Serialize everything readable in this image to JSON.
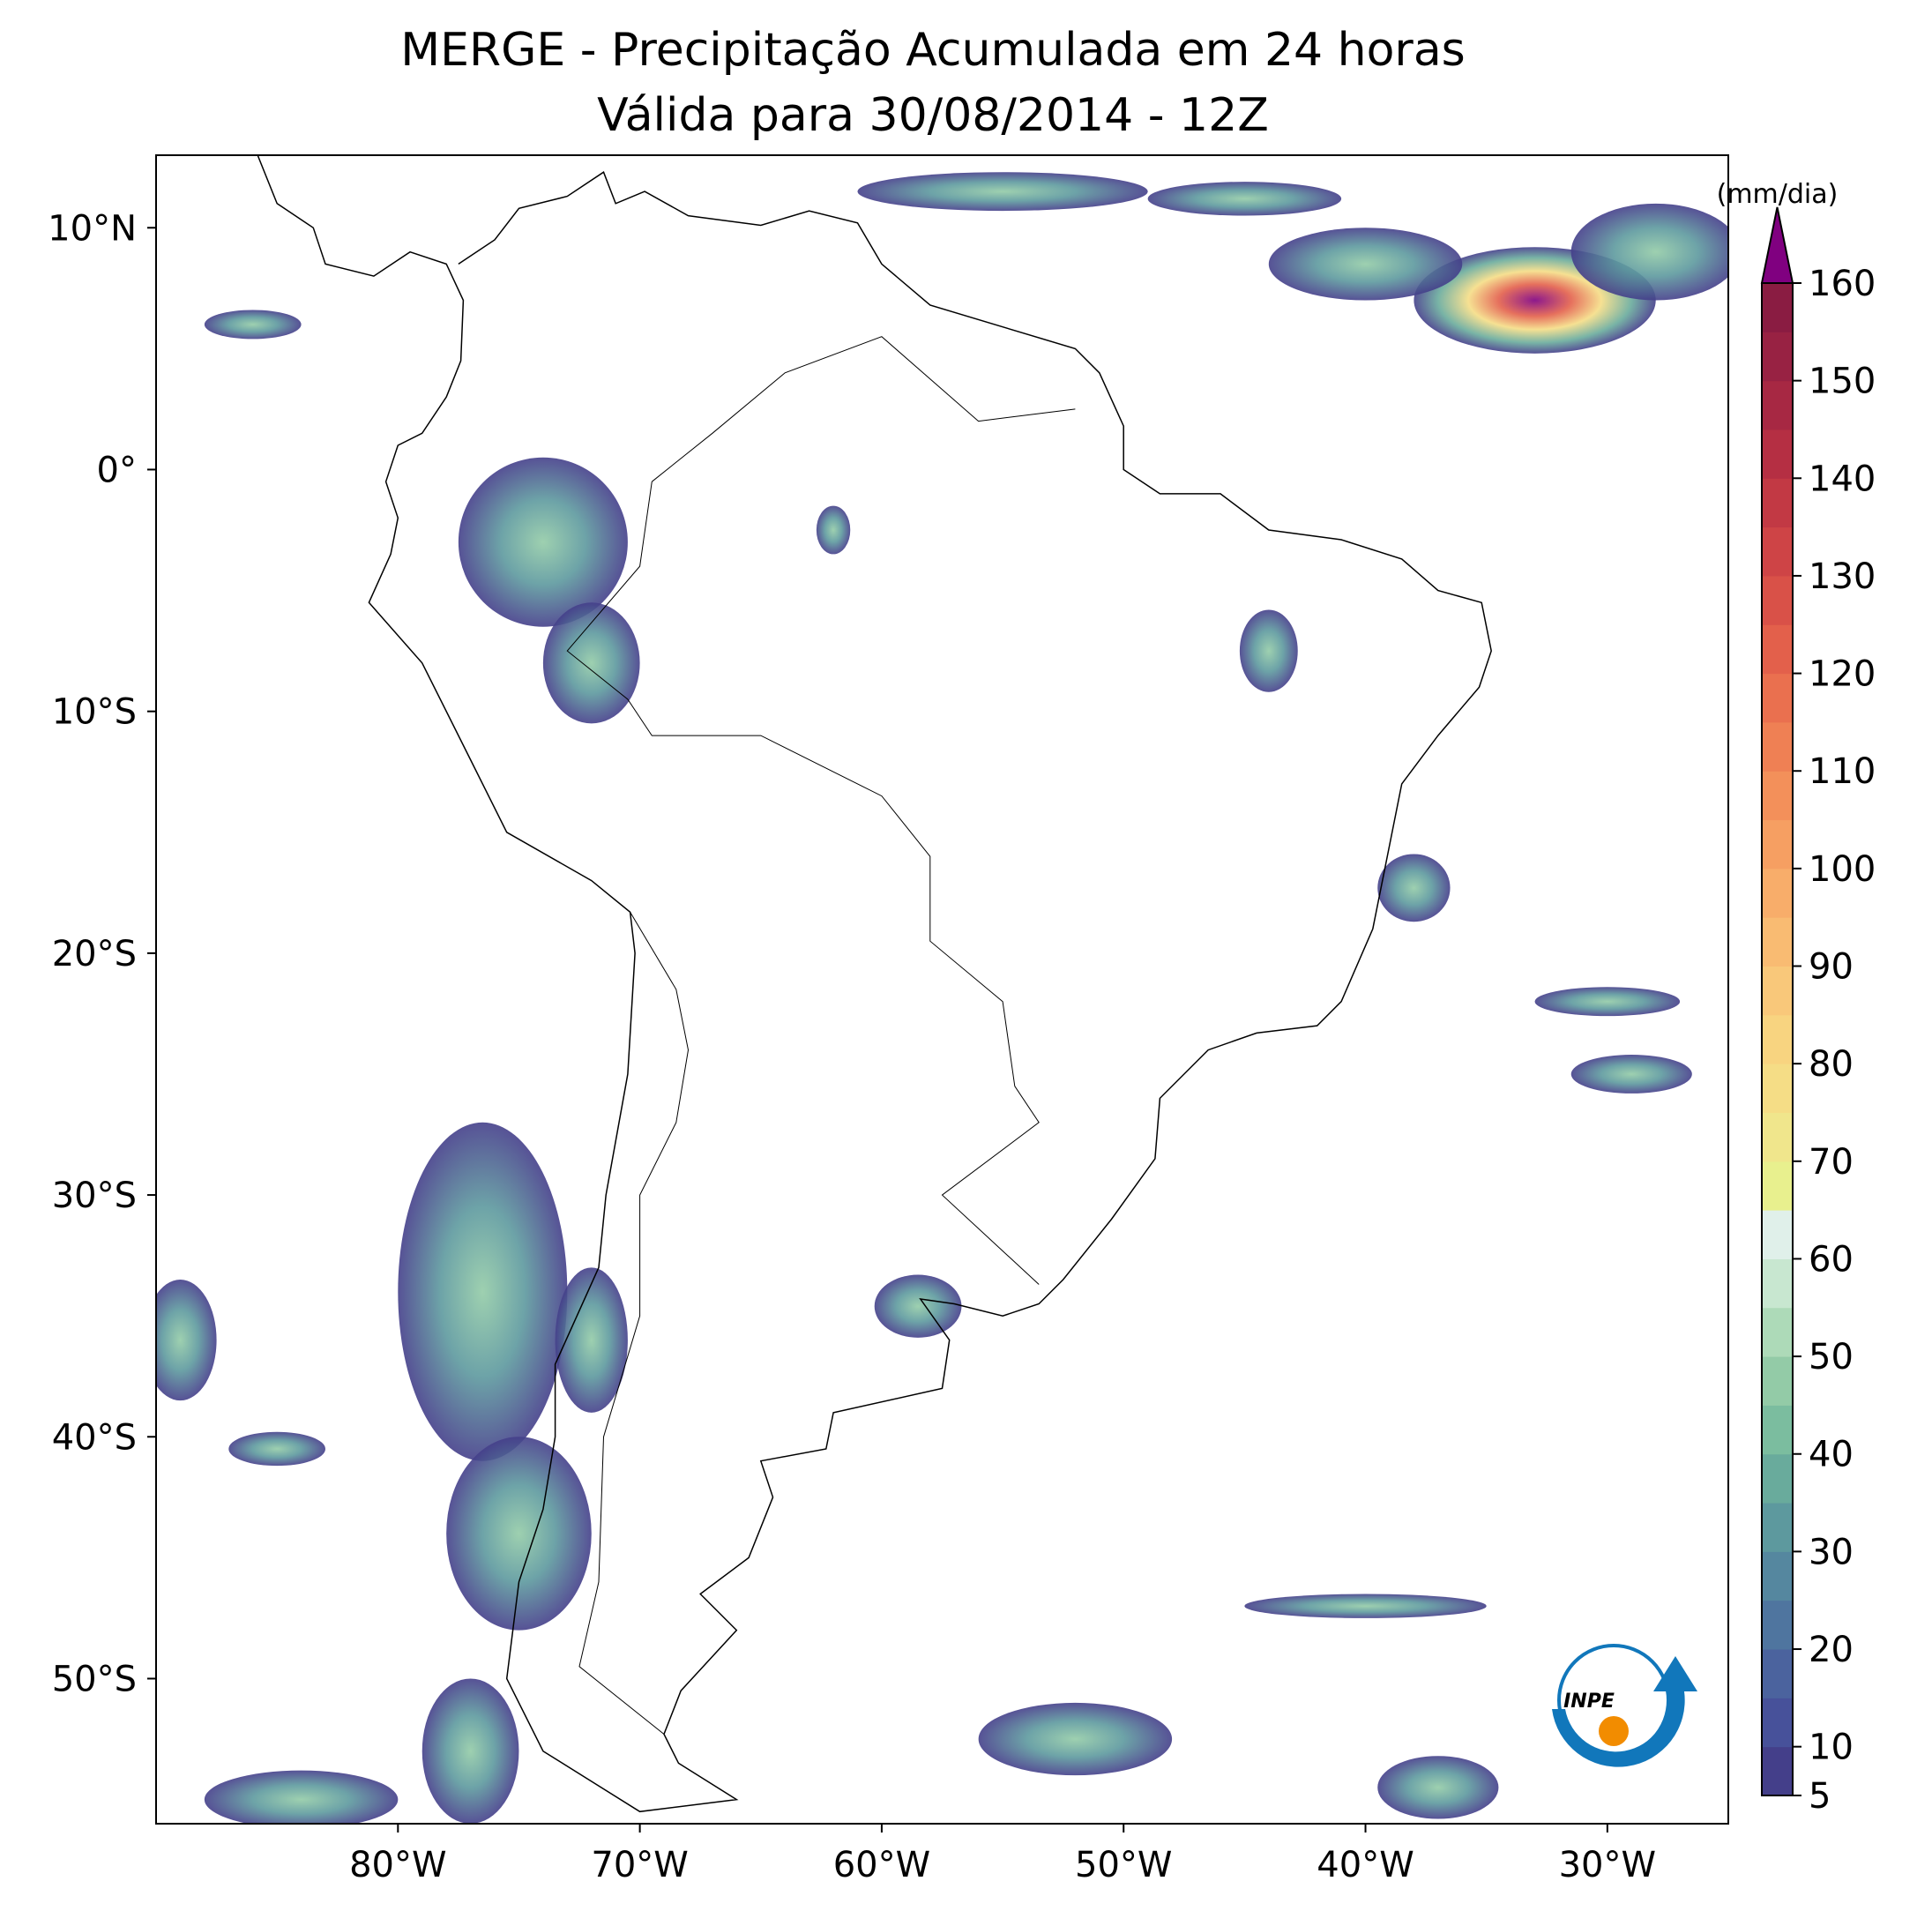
{
  "title": "MERGE - Precipitação Acumulada em 24 horas",
  "subtitle": "Válida para 30/08/2014 - 12Z",
  "map": {
    "lonlim": [
      -90,
      -25
    ],
    "latlim": [
      -56,
      13
    ],
    "lon_ticks": [
      {
        "value": -80,
        "label": "80°W"
      },
      {
        "value": -70,
        "label": "70°W"
      },
      {
        "value": -60,
        "label": "60°W"
      },
      {
        "value": -50,
        "label": "50°W"
      },
      {
        "value": -40,
        "label": "40°W"
      },
      {
        "value": -30,
        "label": "30°W"
      }
    ],
    "lat_ticks": [
      {
        "value": 10,
        "label": "10°N"
      },
      {
        "value": 0,
        "label": "0°"
      },
      {
        "value": -10,
        "label": "10°S"
      },
      {
        "value": -20,
        "label": "20°S"
      },
      {
        "value": -30,
        "label": "30°S"
      },
      {
        "value": -40,
        "label": "40°S"
      },
      {
        "value": -50,
        "label": "50°S"
      }
    ]
  },
  "colorbar": {
    "label": "(mm/dia)",
    "lim": [
      5,
      160
    ],
    "ticks": [
      5,
      10,
      20,
      30,
      40,
      50,
      60,
      70,
      80,
      90,
      100,
      110,
      120,
      130,
      140,
      150,
      160
    ],
    "levels": [
      5,
      10,
      15,
      20,
      25,
      30,
      35,
      40,
      45,
      50,
      55,
      60,
      65,
      70,
      75,
      80,
      85,
      90,
      95,
      100,
      105,
      110,
      115,
      120,
      125,
      130,
      135,
      140,
      145,
      150,
      155,
      160
    ],
    "colors": [
      "#443f8a",
      "#47519a",
      "#4b639e",
      "#4f759f",
      "#55879f",
      "#5d999e",
      "#69ab9c",
      "#7bbd9f",
      "#93cba7",
      "#addab8",
      "#c8e7d0",
      "#e0f0ea",
      "#e8f08e",
      "#f0e68c",
      "#f5dd86",
      "#f8d480",
      "#f9c87a",
      "#f9bb72",
      "#f8ad6a",
      "#f69f62",
      "#f3905a",
      "#ef8054",
      "#ea704f",
      "#e3604b",
      "#d95148",
      "#ce4446",
      "#c23944",
      "#b52f43",
      "#a72843",
      "#982243",
      "#8a1c42"
    ],
    "extend_color": "#800080"
  },
  "logo": "INPE"
}
